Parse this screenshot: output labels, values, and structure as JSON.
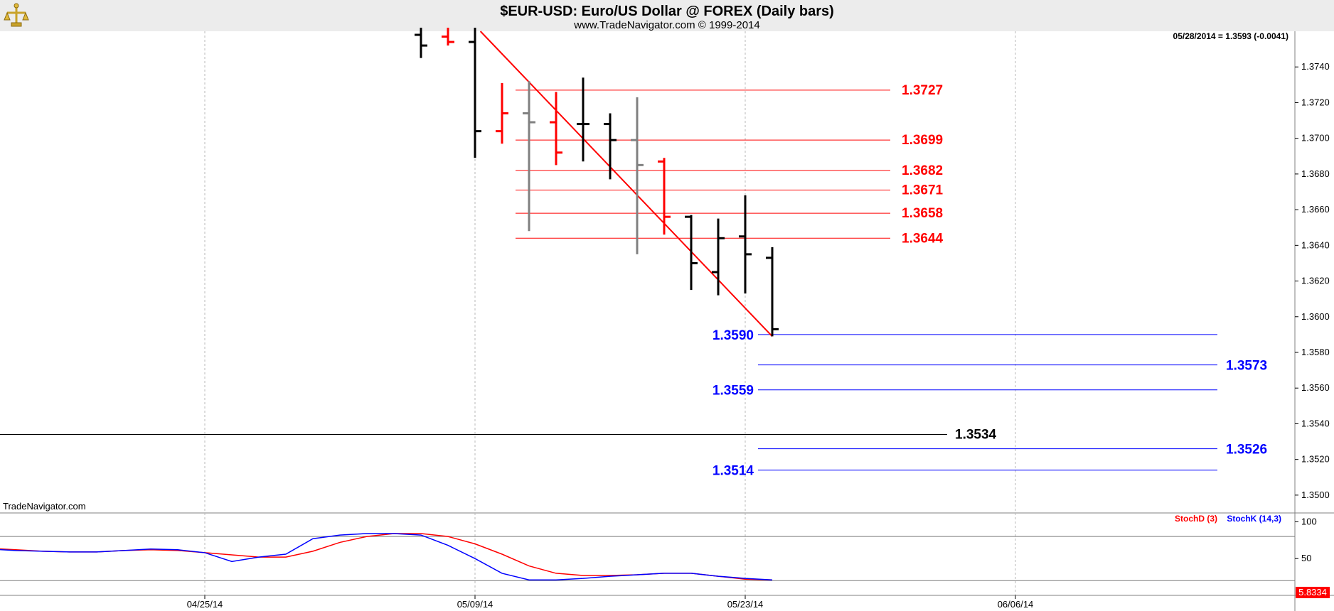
{
  "header": {
    "title": "$EUR-USD:  Euro/US Dollar @ FOREX  (Daily bars)",
    "subtitle": "www.TradeNavigator.com © 1999-2014",
    "last_quote": "05/28/2014 = 1.3593 (-0.0041)"
  },
  "watermark": "TradeNavigator.com",
  "logo": "tradenavigator-logo",
  "colors": {
    "up": "#000000",
    "down": "#ff0000",
    "neutral": "#808080",
    "resistance": "#ff0000",
    "support": "#0000ff",
    "pivot": "#000000",
    "stoch_d": "#ff0000",
    "stoch_k": "#0000ff",
    "trendline": "#ff0000"
  },
  "chart_data": [
    {
      "type": "ohlc",
      "ylim": [
        1.349,
        1.376
      ],
      "y_ticks": [
        "1.3740",
        "1.3720",
        "1.3700",
        "1.3680",
        "1.3660",
        "1.3640",
        "1.3620",
        "1.3600",
        "1.3580",
        "1.3560",
        "1.3540",
        "1.3520",
        "1.3500"
      ],
      "x_ticks": [
        "04/25/14",
        "05/09/14",
        "05/23/14",
        "06/06/14"
      ],
      "x_tick_index": [
        7,
        17,
        27,
        37
      ],
      "grid": true,
      "bars": [
        {
          "i": 15.0,
          "o": 1.3758,
          "h": 1.3762,
          "l": 1.3745,
          "c": 1.3752,
          "color": "up"
        },
        {
          "i": 16.0,
          "o": 1.3757,
          "h": 1.3762,
          "l": 1.3752,
          "c": 1.3754,
          "color": "down"
        },
        {
          "i": 17.0,
          "o": 1.3754,
          "h": 1.3762,
          "l": 1.3689,
          "c": 1.3704,
          "color": "up"
        },
        {
          "i": 18.0,
          "o": 1.3704,
          "h": 1.3731,
          "l": 1.3697,
          "c": 1.3714,
          "color": "down"
        },
        {
          "i": 19.0,
          "o": 1.3714,
          "h": 1.3732,
          "l": 1.3648,
          "c": 1.3709,
          "color": "neutral"
        },
        {
          "i": 20.0,
          "o": 1.3709,
          "h": 1.3726,
          "l": 1.3685,
          "c": 1.3692,
          "color": "down"
        },
        {
          "i": 21.0,
          "o": 1.3708,
          "h": 1.3734,
          "l": 1.3687,
          "c": 1.3708,
          "color": "up"
        },
        {
          "i": 22.0,
          "o": 1.3708,
          "h": 1.3714,
          "l": 1.3677,
          "c": 1.3699,
          "color": "up"
        },
        {
          "i": 23.0,
          "o": 1.3699,
          "h": 1.3723,
          "l": 1.3635,
          "c": 1.3685,
          "color": "neutral"
        },
        {
          "i": 24.0,
          "o": 1.3687,
          "h": 1.3689,
          "l": 1.3646,
          "c": 1.3656,
          "color": "down"
        },
        {
          "i": 25.0,
          "o": 1.3656,
          "h": 1.3657,
          "l": 1.3615,
          "c": 1.363,
          "color": "up"
        },
        {
          "i": 26.0,
          "o": 1.3625,
          "h": 1.3655,
          "l": 1.3612,
          "c": 1.3644,
          "color": "up"
        },
        {
          "i": 27.0,
          "o": 1.3645,
          "h": 1.3668,
          "l": 1.3613,
          "c": 1.3635,
          "color": "up"
        },
        {
          "i": 28.0,
          "o": 1.3633,
          "h": 1.3639,
          "l": 1.3589,
          "c": 1.3593,
          "color": "up"
        }
      ],
      "trendline": {
        "from": {
          "i": 17.2,
          "y": 1.376
        },
        "to": {
          "i": 28.0,
          "y": 1.3589
        }
      },
      "resistance_levels": [
        {
          "value": 1.3727,
          "label": "1.3727"
        },
        {
          "value": 1.3699,
          "label": "1.3699"
        },
        {
          "value": 1.3682,
          "label": "1.3682"
        },
        {
          "value": 1.3671,
          "label": "1.3671"
        },
        {
          "value": 1.3658,
          "label": "1.3658"
        },
        {
          "value": 1.3644,
          "label": "1.3644"
        }
      ],
      "support_levels": [
        {
          "value": 1.359,
          "label": "1.3590",
          "label_side": "left"
        },
        {
          "value": 1.3573,
          "label": "1.3573",
          "label_side": "right"
        },
        {
          "value": 1.3559,
          "label": "1.3559",
          "label_side": "left"
        },
        {
          "value": 1.3526,
          "label": "1.3526",
          "label_side": "right"
        },
        {
          "value": 1.3514,
          "label": "1.3514",
          "label_side": "left"
        }
      ],
      "pivot_level": {
        "value": 1.3534,
        "label": "1.3534"
      }
    },
    {
      "type": "line",
      "ylim": [
        0,
        112
      ],
      "y_ticks": [
        "100",
        "50"
      ],
      "reference_lines": [
        80,
        20
      ],
      "last_value": "5.8334",
      "series": [
        {
          "name": "StochD (3)",
          "color": "stoch_d",
          "x": [
            -3,
            -2,
            -1,
            0,
            1,
            2,
            3,
            4,
            5,
            6,
            7,
            8,
            9,
            10,
            11,
            12,
            13,
            14,
            15,
            16,
            17,
            18,
            19,
            20,
            21,
            22,
            23,
            24,
            25,
            26,
            27,
            28
          ],
          "values": [
            74,
            68,
            64,
            62,
            60,
            59,
            59,
            61,
            62,
            61,
            58,
            55,
            52,
            52,
            60,
            72,
            80,
            84,
            84,
            80,
            70,
            56,
            40,
            30,
            27,
            27,
            28,
            30,
            30,
            26,
            22,
            21
          ]
        },
        {
          "name": "StochK (14,3)",
          "color": "stoch_k",
          "x": [
            -3,
            -2,
            -1,
            0,
            1,
            2,
            3,
            4,
            5,
            6,
            7,
            8,
            9,
            10,
            11,
            12,
            13,
            14,
            15,
            16,
            17,
            18,
            19,
            20,
            21,
            22,
            23,
            24,
            25,
            26,
            27,
            28
          ],
          "values": [
            64,
            64,
            63,
            61,
            60,
            59,
            59,
            61,
            63,
            62,
            58,
            46,
            52,
            56,
            77,
            82,
            84,
            84,
            82,
            68,
            50,
            30,
            21,
            21,
            23,
            26,
            28,
            30,
            30,
            26,
            23,
            21
          ]
        }
      ]
    }
  ]
}
